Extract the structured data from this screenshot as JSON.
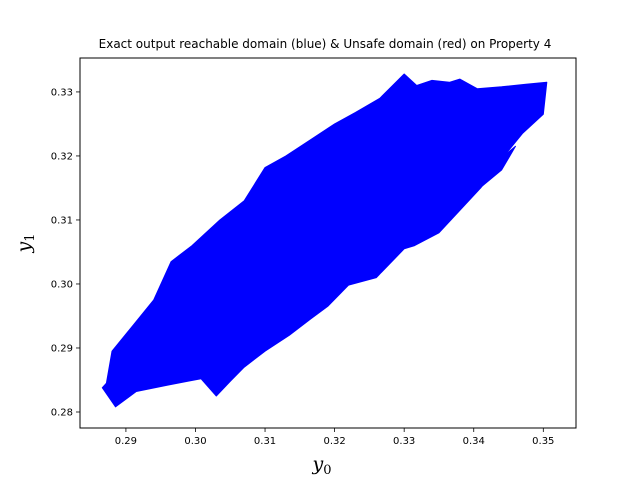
{
  "chart_data": {
    "type": "area",
    "title": "Exact output reachable domain (blue) & Unsafe domain (red) on Property 4",
    "xlabel_base": "y",
    "xlabel_sub": "0",
    "ylabel_base": "y",
    "ylabel_sub": "1",
    "xlim": [
      0.2834,
      0.3547
    ],
    "ylim": [
      0.2775,
      0.3353
    ],
    "xticks": [
      0.29,
      0.3,
      0.31,
      0.32,
      0.33,
      0.34,
      0.35
    ],
    "xtick_labels": [
      "0.29",
      "0.30",
      "0.31",
      "0.32",
      "0.33",
      "0.34",
      "0.35"
    ],
    "yticks": [
      0.28,
      0.29,
      0.3,
      0.31,
      0.32,
      0.33
    ],
    "ytick_labels": [
      "0.28",
      "0.29",
      "0.30",
      "0.31",
      "0.32",
      "0.33"
    ],
    "grid": false,
    "series": [
      {
        "color": "#0000ff",
        "region": [
          [
            0.2872,
            0.2845
          ],
          [
            0.288,
            0.2895
          ],
          [
            0.291,
            0.2935
          ],
          [
            0.294,
            0.2975
          ],
          [
            0.2965,
            0.3035
          ],
          [
            0.2995,
            0.306
          ],
          [
            0.3035,
            0.31
          ],
          [
            0.307,
            0.313
          ],
          [
            0.31,
            0.3182
          ],
          [
            0.313,
            0.32
          ],
          [
            0.3165,
            0.3225
          ],
          [
            0.32,
            0.325
          ],
          [
            0.323,
            0.3268
          ],
          [
            0.3265,
            0.329
          ],
          [
            0.33,
            0.3328
          ],
          [
            0.3318,
            0.331
          ],
          [
            0.334,
            0.3318
          ],
          [
            0.3365,
            0.3315
          ],
          [
            0.338,
            0.332
          ],
          [
            0.3405,
            0.3305
          ],
          [
            0.344,
            0.3308
          ],
          [
            0.3475,
            0.3312
          ],
          [
            0.3505,
            0.3315
          ],
          [
            0.35,
            0.3265
          ],
          [
            0.347,
            0.3235
          ],
          [
            0.344,
            0.3195
          ],
          [
            0.341,
            0.315
          ],
          [
            0.338,
            0.3115
          ],
          [
            0.335,
            0.308
          ],
          [
            0.3315,
            0.306
          ],
          [
            0.33,
            0.3055
          ],
          [
            0.326,
            0.301
          ],
          [
            0.322,
            0.2998
          ],
          [
            0.319,
            0.2965
          ],
          [
            0.3165,
            0.2945
          ],
          [
            0.3135,
            0.292
          ],
          [
            0.31,
            0.2895
          ],
          [
            0.307,
            0.287
          ],
          [
            0.305,
            0.2848
          ],
          [
            0.303,
            0.2825
          ],
          [
            0.3008,
            0.2852
          ],
          [
            0.296,
            0.2842
          ],
          [
            0.2915,
            0.2832
          ],
          [
            0.2885,
            0.2808
          ],
          [
            0.2866,
            0.2838
          ]
        ]
      },
      {
        "color": "#0000ff",
        "region": [
          [
            0.332,
            0.3065
          ],
          [
            0.337,
            0.311
          ],
          [
            0.342,
            0.3175
          ],
          [
            0.3455,
            0.3225
          ],
          [
            0.342,
            0.319
          ],
          [
            0.337,
            0.3135
          ]
        ]
      },
      {
        "color": "#0000ff",
        "region": [
          [
            0.3365,
            0.3125
          ],
          [
            0.341,
            0.317
          ],
          [
            0.346,
            0.3215
          ],
          [
            0.344,
            0.3178
          ],
          [
            0.34,
            0.3142
          ]
        ]
      }
    ]
  }
}
